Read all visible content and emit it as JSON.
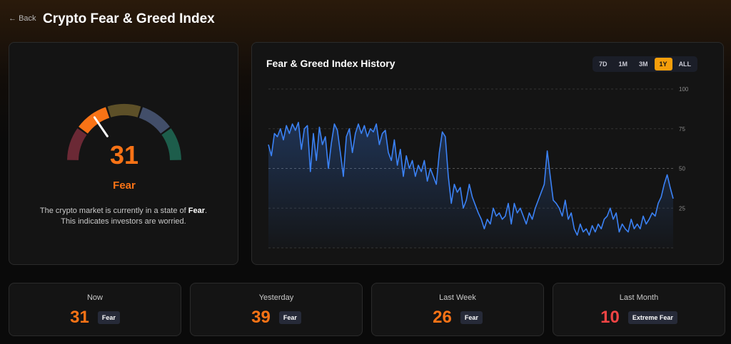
{
  "header": {
    "back": "Back",
    "title": "Crypto Fear & Greed Index"
  },
  "gauge": {
    "value": 31,
    "min": 0,
    "max": 100,
    "label": "Fear",
    "description": "The crypto market is currently in a state of",
    "description_end": ".",
    "description_line2": "This indicates investors are worried."
  },
  "chart_data": {
    "type": "line",
    "title": "Fear & Greed Index History",
    "ranges": [
      "7D",
      "1M",
      "3M",
      "1Y",
      "ALL"
    ],
    "active_range": "1Y",
    "ylim": [
      0,
      100
    ],
    "yticks": [
      25,
      50,
      75,
      100
    ],
    "grid": true,
    "series": [
      {
        "name": "Fear & Greed Index",
        "color": "#3b82f6",
        "values": [
          65,
          58,
          72,
          70,
          75,
          68,
          77,
          72,
          78,
          74,
          79,
          62,
          75,
          77,
          48,
          72,
          55,
          76,
          65,
          70,
          50,
          66,
          78,
          74,
          60,
          45,
          70,
          75,
          60,
          72,
          78,
          72,
          77,
          70,
          75,
          73,
          78,
          65,
          72,
          74,
          60,
          55,
          68,
          52,
          62,
          45,
          58,
          50,
          55,
          45,
          52,
          48,
          55,
          42,
          50,
          45,
          40,
          60,
          73,
          70,
          45,
          28,
          40,
          35,
          38,
          25,
          30,
          40,
          32,
          27,
          22,
          18,
          12,
          18,
          15,
          25,
          20,
          22,
          18,
          20,
          28,
          15,
          28,
          22,
          25,
          20,
          15,
          22,
          18,
          25,
          30,
          35,
          40,
          61,
          45,
          30,
          28,
          25,
          20,
          30,
          18,
          22,
          12,
          8,
          15,
          10,
          12,
          8,
          14,
          10,
          15,
          12,
          18,
          20,
          25,
          18,
          22,
          10,
          15,
          12,
          10,
          18,
          12,
          15,
          12,
          20,
          15,
          18,
          22,
          20,
          28,
          32,
          40,
          46,
          38,
          31
        ]
      }
    ]
  },
  "stats": [
    {
      "label": "Now",
      "value": 31,
      "status": "Fear",
      "color": "#f97316"
    },
    {
      "label": "Yesterday",
      "value": 39,
      "status": "Fear",
      "color": "#f97316"
    },
    {
      "label": "Last Week",
      "value": 26,
      "status": "Fear",
      "color": "#f97316"
    },
    {
      "label": "Last Month",
      "value": 10,
      "status": "Extreme Fear",
      "color": "#ef4444"
    }
  ]
}
